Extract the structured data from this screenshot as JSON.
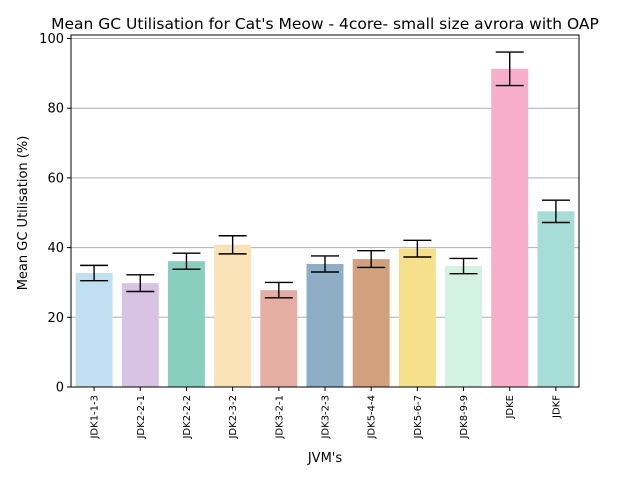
{
  "chart_data": {
    "type": "bar",
    "title": "Mean GC Utilisation for Cat's Meow - 4core- small size avrora with OAP",
    "xlabel": "JVM's",
    "ylabel": "Mean GC Utilisation (%)",
    "ylim": [
      0,
      101
    ],
    "yticks": [
      "0",
      "20",
      "40",
      "60",
      "80",
      "100"
    ],
    "grid": "horizontal",
    "categories": [
      "JDK1-1-3",
      "JDK2-2-1",
      "JDK2-2-2",
      "JDK2-3-2",
      "JDK3-2-1",
      "JDK3-2-3",
      "JDK5-4-4",
      "JDK5-6-7",
      "JDK8-9-9",
      "JDKE",
      "JDKF"
    ],
    "values": [
      32.7,
      29.8,
      36.1,
      40.8,
      27.8,
      35.3,
      36.7,
      39.7,
      34.7,
      91.3,
      50.4
    ],
    "error": [
      2.2,
      2.4,
      2.3,
      2.6,
      2.2,
      2.3,
      2.4,
      2.4,
      2.2,
      4.8,
      3.2
    ],
    "colors": [
      "#c0dff1",
      "#d8c3e4",
      "#88cfbf",
      "#fae2b7",
      "#e5aea5",
      "#8daec4",
      "#d1a07d",
      "#f7e08c",
      "#d3f2e2",
      "#f7aec8",
      "#a6ddd6"
    ]
  }
}
